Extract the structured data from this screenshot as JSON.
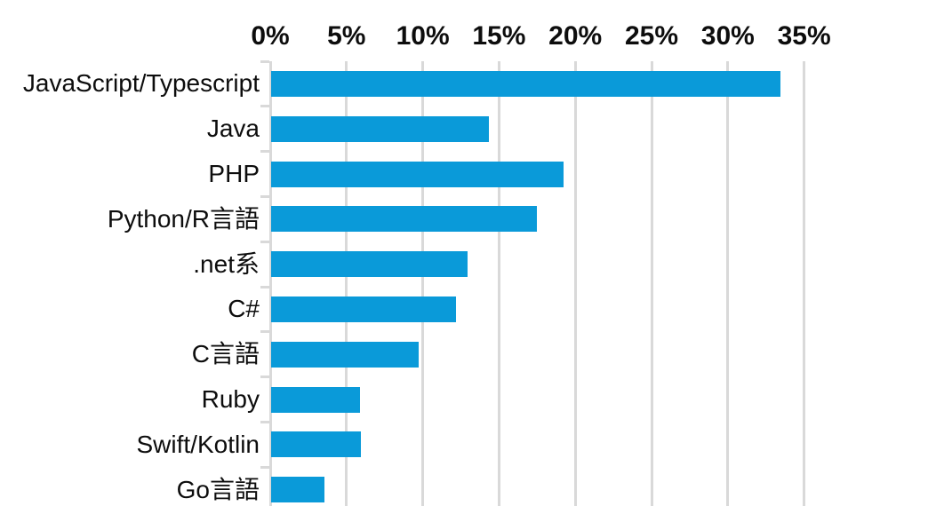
{
  "chart_data": {
    "type": "bar",
    "orientation": "horizontal",
    "title": "",
    "categories": [
      "JavaScript/Typescript",
      "Java",
      "PHP",
      "Python/R言語",
      ".net系",
      "C#",
      "C言語",
      "Ruby",
      "Swift/Kotlin",
      "Go言語"
    ],
    "values": [
      33.4,
      14.3,
      19.2,
      17.4,
      12.9,
      12.1,
      9.7,
      5.8,
      5.9,
      3.5
    ],
    "value_unit": "%",
    "x_axis": {
      "position": "top",
      "min": 0,
      "max": 35,
      "ticks": [
        0,
        5,
        10,
        15,
        20,
        25,
        30,
        35
      ],
      "tick_labels": [
        "0%",
        "5%",
        "10%",
        "15%",
        "20%",
        "25%",
        "30%",
        "35%"
      ]
    },
    "grid": true,
    "legend": false,
    "colors": {
      "bar": "#0a9ad9",
      "gridline": "#d9d9d9",
      "text": "#0d0d0d",
      "background": "#ffffff"
    }
  }
}
